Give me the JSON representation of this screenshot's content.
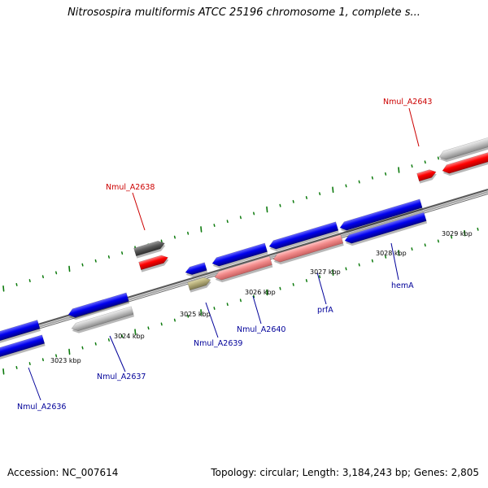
{
  "title": "Nitrosospira multiformis ATCC 25196 chromosome 1, complete s...",
  "footer": {
    "accession": "Accession: NC_007614",
    "topology": "Topology: circular; Length: 3,184,243 bp; Genes: 2,805"
  },
  "colors": {
    "blue": "#0000ee",
    "red": "#ff0000",
    "pink": "#f28a8a",
    "gray": "#bdbdbd",
    "dark_gray": "#555555",
    "olive": "#b5ad78",
    "tick_green": "#0c7a0c",
    "label_blue": "#000099",
    "label_red": "#cc0000"
  },
  "ticks": [
    {
      "label": "3023 kbp"
    },
    {
      "label": "3024 kbp"
    },
    {
      "label": "3025 kbp"
    },
    {
      "label": "3026 kbp"
    },
    {
      "label": "3027 kbp"
    },
    {
      "label": "3028 kbp"
    },
    {
      "label": "3029 kbp"
    }
  ],
  "gene_labels": [
    {
      "name": "Nmul_A2636",
      "strand": "reverse",
      "color": "label_blue"
    },
    {
      "name": "Nmul_A2637",
      "strand": "reverse",
      "color": "label_blue"
    },
    {
      "name": "Nmul_A2638",
      "strand": "forward",
      "color": "label_red"
    },
    {
      "name": "Nmul_A2639",
      "strand": "reverse",
      "color": "label_blue"
    },
    {
      "name": "Nmul_A2640",
      "strand": "reverse",
      "color": "label_blue"
    },
    {
      "name": "prfA",
      "strand": "reverse",
      "color": "label_blue"
    },
    {
      "name": "hemA",
      "strand": "reverse",
      "color": "label_blue"
    },
    {
      "name": "Nmul_A2643",
      "strand": "forward",
      "color": "label_red"
    }
  ]
}
